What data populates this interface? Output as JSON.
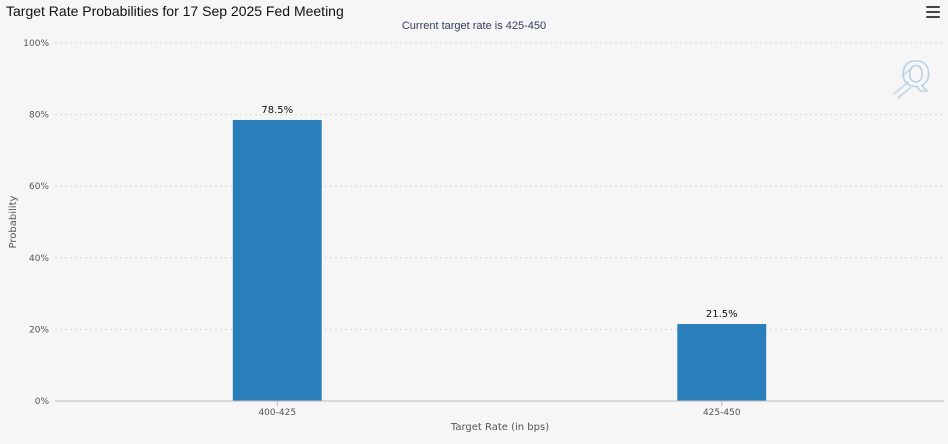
{
  "header": {
    "title": "Target Rate Probabilities for 17 Sep 2025 Fed Meeting",
    "menu_icon": "hamburger-menu-icon"
  },
  "watermark_icon": "q-logo-icon",
  "colors": {
    "bar": "#2a7fba",
    "grid": "#d8d8d8",
    "axis": "#bbbbbb"
  },
  "chart_data": {
    "type": "bar",
    "title": "Target Rate Probabilities for 17 Sep 2025 Fed Meeting",
    "subtitle": "Current target rate is 425-450",
    "xlabel": "Target Rate (in bps)",
    "ylabel": "Probability",
    "categories": [
      "400-425",
      "425-450"
    ],
    "values": [
      78.5,
      21.5
    ],
    "data_labels": [
      "78.5%",
      "21.5%"
    ],
    "ylim": [
      0,
      100
    ],
    "yticks": [
      0,
      20,
      40,
      60,
      80,
      100
    ],
    "ytick_labels": [
      "0%",
      "20%",
      "40%",
      "60%",
      "80%",
      "100%"
    ],
    "grid": true,
    "legend": "none"
  }
}
